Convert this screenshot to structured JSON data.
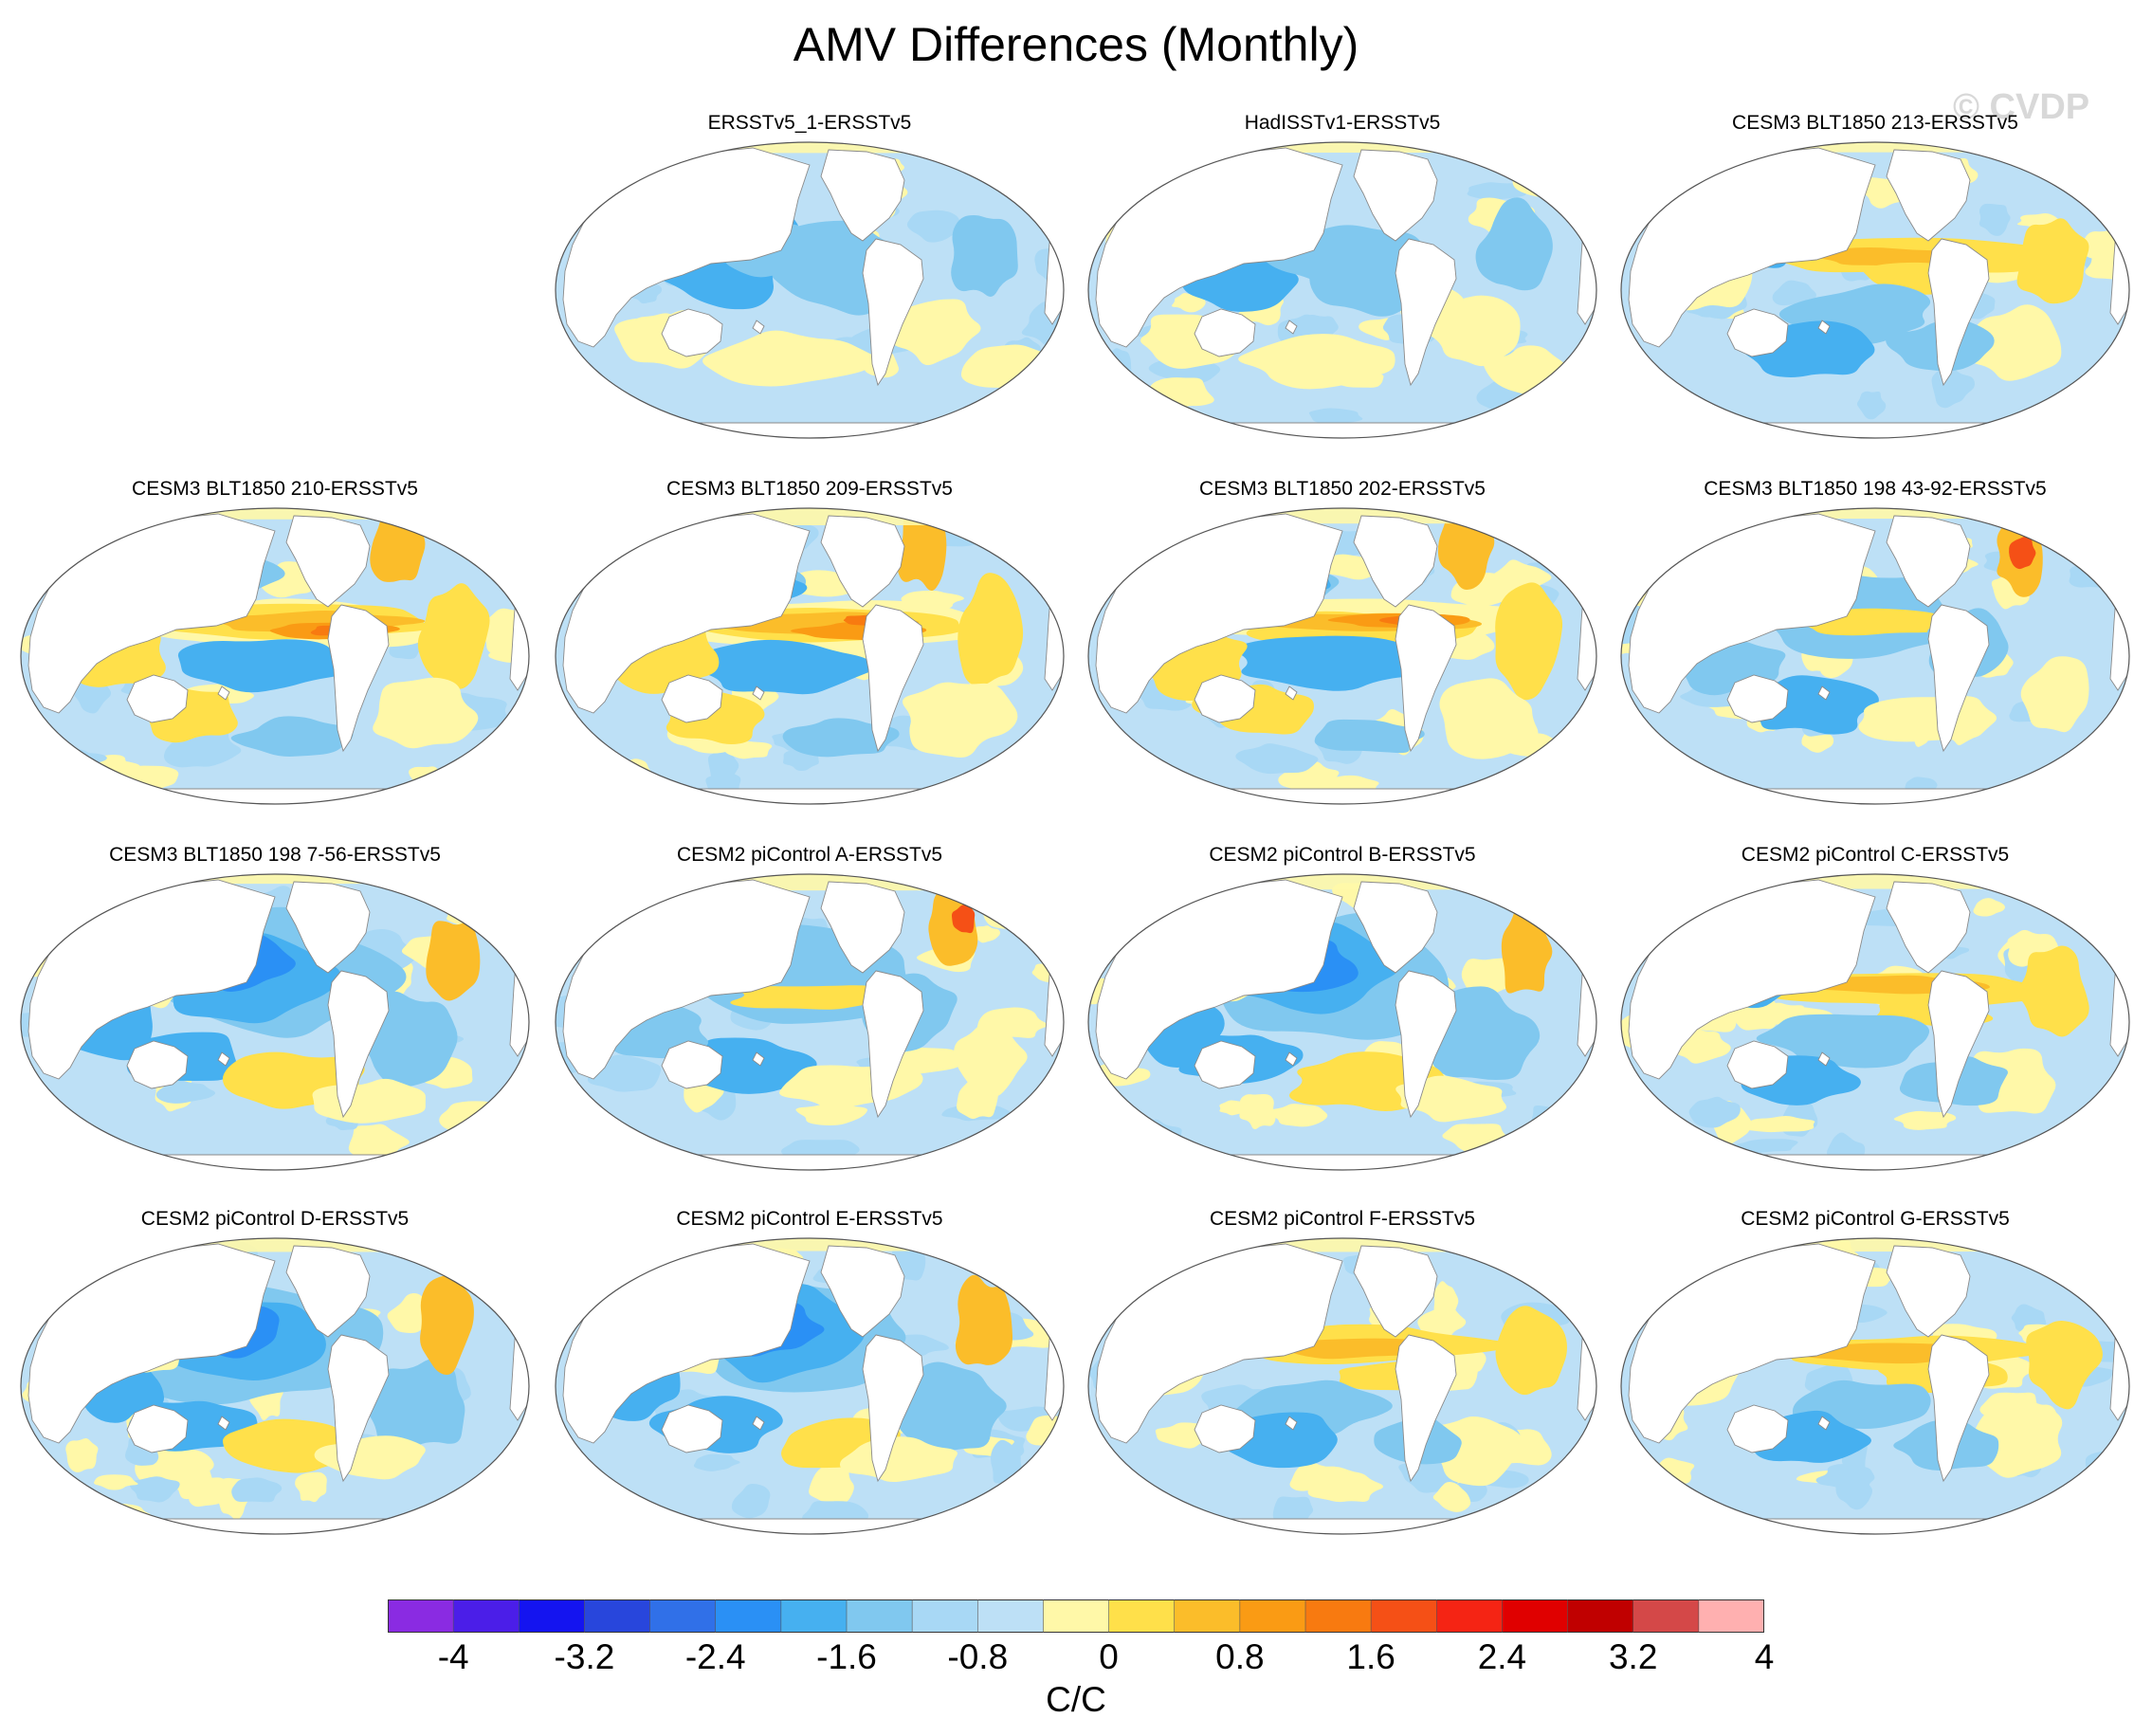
{
  "title": "AMV Differences (Monthly)",
  "watermark": "© CVDP",
  "units": "C/C",
  "colorbar": {
    "colors": [
      "#8a2be2",
      "#4b1ee8",
      "#1414f0",
      "#2846dc",
      "#3070e8",
      "#2a90f5",
      "#46b0f0",
      "#80c8ef",
      "#a8d8f5",
      "#bde0f6",
      "#fff8a8",
      "#ffe04a",
      "#fbbd2a",
      "#fa9b14",
      "#f87a10",
      "#f55016",
      "#f52414",
      "#e00000",
      "#c00000",
      "#d44848",
      "#ffb0b0"
    ],
    "labels": [
      "-4",
      "-3.2",
      "-2.4",
      "-1.6",
      "-0.8",
      "0",
      "0.8",
      "1.6",
      "2.4",
      "3.2",
      "4"
    ]
  },
  "panels": [
    {
      "title": "ERSSTv5_1-ERSSTv5",
      "pattern": "obs"
    },
    {
      "title": "HadISSTv1-ERSSTv5",
      "pattern": "obs"
    },
    {
      "title": "CESM3 BLT1850 213-ERSSTv5",
      "pattern": "warm"
    },
    {
      "title": "CESM3 BLT1850 210-ERSSTv5",
      "pattern": "strong-warm"
    },
    {
      "title": "CESM3 BLT1850 209-ERSSTv5",
      "pattern": "strong-warm"
    },
    {
      "title": "CESM3 BLT1850 202-ERSSTv5",
      "pattern": "strong-warm"
    },
    {
      "title": "CESM3 BLT1850 198 43-92-ERSSTv5",
      "pattern": "mixed"
    },
    {
      "title": "CESM3 BLT1850 198 7-56-ERSSTv5",
      "pattern": "cool"
    },
    {
      "title": "CESM2 piControl A-ERSSTv5",
      "pattern": "mixed"
    },
    {
      "title": "CESM2 piControl B-ERSSTv5",
      "pattern": "cool"
    },
    {
      "title": "CESM2 piControl C-ERSSTv5",
      "pattern": "warm"
    },
    {
      "title": "CESM2 piControl D-ERSSTv5",
      "pattern": "cool"
    },
    {
      "title": "CESM2 piControl E-ERSSTv5",
      "pattern": "cool"
    },
    {
      "title": "CESM2 piControl F-ERSSTv5",
      "pattern": "warm"
    },
    {
      "title": "CESM2 piControl G-ERSSTv5",
      "pattern": "warm"
    }
  ]
}
